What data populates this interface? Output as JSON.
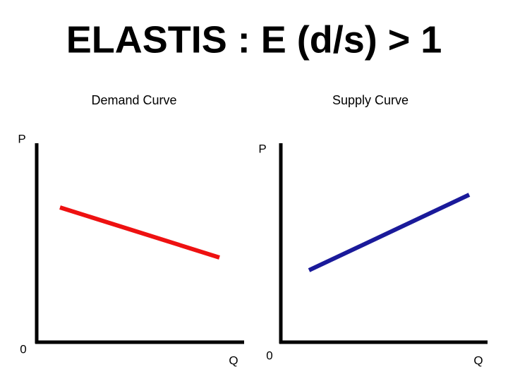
{
  "title": "ELASTIS : E (d/s) > 1",
  "panels": [
    {
      "label": "Demand Curve",
      "y_axis": "P",
      "origin": "0",
      "x_axis": "Q"
    },
    {
      "label": "Supply Curve",
      "y_axis": "P",
      "origin": "0",
      "x_axis": "Q"
    }
  ]
}
